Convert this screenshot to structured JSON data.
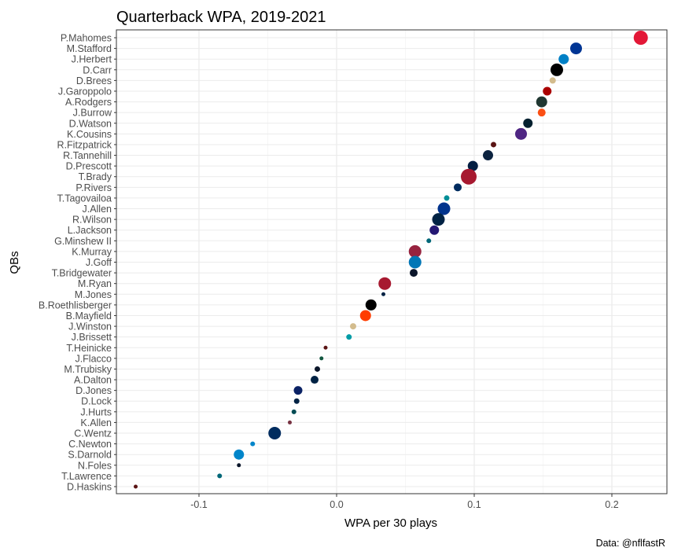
{
  "chart_data": {
    "type": "scatter",
    "title": "Quarterback WPA, 2019-2021",
    "xlabel": "WPA per 30 plays",
    "ylabel": "QBs",
    "caption": "Data: @nflfastR",
    "xlim": [
      -0.16,
      0.24
    ],
    "xticks": [
      -0.1,
      0.0,
      0.1,
      0.2
    ],
    "xtick_labels": [
      "-0.1",
      "0.0",
      "0.1",
      "0.2"
    ],
    "grid": true,
    "legend": "none",
    "points": [
      {
        "label": "P.Mahomes",
        "x": 0.221,
        "size": 9,
        "color": "#E31837"
      },
      {
        "label": "M.Stafford",
        "x": 0.174,
        "size": 7.5,
        "color": "#003594"
      },
      {
        "label": "J.Herbert",
        "x": 0.165,
        "size": 6.5,
        "color": "#0080C6"
      },
      {
        "label": "D.Carr",
        "x": 0.16,
        "size": 8,
        "color": "#000000"
      },
      {
        "label": "D.Brees",
        "x": 0.157,
        "size": 4,
        "color": "#D3BC8D"
      },
      {
        "label": "J.Garoppolo",
        "x": 0.153,
        "size": 5.5,
        "color": "#AA0000"
      },
      {
        "label": "A.Rodgers",
        "x": 0.149,
        "size": 7,
        "color": "#203731"
      },
      {
        "label": "J.Burrow",
        "x": 0.149,
        "size": 5,
        "color": "#FB4F14"
      },
      {
        "label": "D.Watson",
        "x": 0.139,
        "size": 6,
        "color": "#03202F"
      },
      {
        "label": "K.Cousins",
        "x": 0.134,
        "size": 7.5,
        "color": "#4F2683"
      },
      {
        "label": "R.Fitzpatrick",
        "x": 0.114,
        "size": 3.5,
        "color": "#5A1414"
      },
      {
        "label": "R.Tannehill",
        "x": 0.11,
        "size": 6.5,
        "color": "#0C2340"
      },
      {
        "label": "D.Prescott",
        "x": 0.099,
        "size": 6.5,
        "color": "#041E42"
      },
      {
        "label": "T.Brady",
        "x": 0.096,
        "size": 10,
        "color": "#A71930"
      },
      {
        "label": "P.Rivers",
        "x": 0.088,
        "size": 5,
        "color": "#002C5F"
      },
      {
        "label": "T.Tagovailoa",
        "x": 0.08,
        "size": 3.5,
        "color": "#008E97"
      },
      {
        "label": "J.Allen",
        "x": 0.078,
        "size": 8,
        "color": "#00338D"
      },
      {
        "label": "R.Wilson",
        "x": 0.074,
        "size": 8,
        "color": "#002244"
      },
      {
        "label": "L.Jackson",
        "x": 0.071,
        "size": 6,
        "color": "#241773"
      },
      {
        "label": "G.Minshew II",
        "x": 0.067,
        "size": 3,
        "color": "#006778"
      },
      {
        "label": "K.Murray",
        "x": 0.057,
        "size": 8,
        "color": "#97233F"
      },
      {
        "label": "J.Goff",
        "x": 0.057,
        "size": 8,
        "color": "#0076B6"
      },
      {
        "label": "T.Bridgewater",
        "x": 0.056,
        "size": 5,
        "color": "#0B162A"
      },
      {
        "label": "M.Ryan",
        "x": 0.035,
        "size": 8,
        "color": "#A71930"
      },
      {
        "label": "M.Jones",
        "x": 0.034,
        "size": 2.5,
        "color": "#002244"
      },
      {
        "label": "B.Roethlisberger",
        "x": 0.025,
        "size": 7,
        "color": "#000000"
      },
      {
        "label": "B.Mayfield",
        "x": 0.021,
        "size": 7,
        "color": "#FF3C00"
      },
      {
        "label": "J.Winston",
        "x": 0.012,
        "size": 4,
        "color": "#D3BC8D"
      },
      {
        "label": "J.Brissett",
        "x": 0.009,
        "size": 3.5,
        "color": "#009CA6"
      },
      {
        "label": "T.Heinicke",
        "x": -0.008,
        "size": 2.5,
        "color": "#5A1414"
      },
      {
        "label": "J.Flacco",
        "x": -0.011,
        "size": 2.5,
        "color": "#125740"
      },
      {
        "label": "M.Trubisky",
        "x": -0.014,
        "size": 3.5,
        "color": "#0B162A"
      },
      {
        "label": "A.Dalton",
        "x": -0.016,
        "size": 5,
        "color": "#002244"
      },
      {
        "label": "D.Jones",
        "x": -0.028,
        "size": 5.5,
        "color": "#0B2265"
      },
      {
        "label": "D.Lock",
        "x": -0.029,
        "size": 3.5,
        "color": "#002244"
      },
      {
        "label": "J.Hurts",
        "x": -0.031,
        "size": 3,
        "color": "#004C54"
      },
      {
        "label": "K.Allen",
        "x": -0.034,
        "size": 2.5,
        "color": "#773141"
      },
      {
        "label": "C.Wentz",
        "x": -0.045,
        "size": 8,
        "color": "#002C5F"
      },
      {
        "label": "C.Newton",
        "x": -0.061,
        "size": 3,
        "color": "#0085CA"
      },
      {
        "label": "S.Darnold",
        "x": -0.071,
        "size": 6.5,
        "color": "#0085CA"
      },
      {
        "label": "N.Foles",
        "x": -0.071,
        "size": 2.5,
        "color": "#0B162A"
      },
      {
        "label": "T.Lawrence",
        "x": -0.085,
        "size": 3,
        "color": "#006778"
      },
      {
        "label": "D.Haskins",
        "x": -0.146,
        "size": 2.5,
        "color": "#5A1414"
      }
    ]
  }
}
